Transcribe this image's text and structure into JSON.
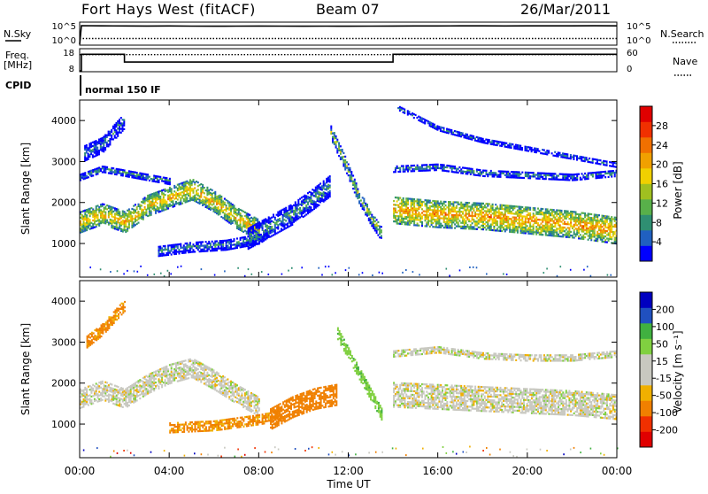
{
  "header": {
    "station": "Fort Hays West (fitACF)",
    "beam": "Beam 07",
    "date": "26/Mar/2011"
  },
  "top_panels": {
    "nsky": {
      "label": "N.Sky",
      "right_label": "N.Search",
      "left_ticks": [
        "10^5",
        "10^0"
      ],
      "right_ticks": [
        "10^5",
        "10^0"
      ]
    },
    "freq": {
      "label_line1": "Freq.",
      "label_line2": "[MHz]",
      "right_label": "Nave",
      "left_ticks": [
        "18",
        "8"
      ],
      "right_ticks": [
        "60",
        "0"
      ]
    },
    "cpid": {
      "label": "CPID",
      "mode": "normal 150 IF"
    }
  },
  "colors": {
    "power_scale": [
      "#0000ff",
      "#2060c0",
      "#2f8f72",
      "#58b04a",
      "#a0c020",
      "#f0d000",
      "#f0a000",
      "#f07000",
      "#f03000",
      "#e00000"
    ],
    "velocity_scale": [
      "#e00000",
      "#f03000",
      "#f08000",
      "#f0b000",
      "#c8c8c0",
      "#c8c8c0",
      "#80d040",
      "#40b040",
      "#2050c0",
      "#0000c0"
    ]
  },
  "chart_data": [
    {
      "type": "line",
      "name": "nsky-nsearch",
      "xlabel": "",
      "ylabel": "N.Sky",
      "y2label": "N.Search",
      "xlim": [
        0,
        24
      ],
      "scale": "log",
      "ylim": [
        1,
        100000
      ],
      "series": [
        {
          "name": "N.Sky",
          "style": "solid",
          "x": [
            0,
            0.08,
            1,
            2,
            3,
            4,
            5,
            6,
            7,
            8,
            9,
            10,
            11,
            12,
            13,
            14,
            15,
            16,
            17,
            18,
            19,
            20,
            21,
            22,
            23,
            24
          ],
          "values": [
            1,
            60000,
            52000,
            50000,
            49000,
            50000,
            46000,
            44000,
            45000,
            47000,
            46000,
            44000,
            45000,
            43000,
            46000,
            48000,
            50000,
            51000,
            53000,
            52000,
            51000,
            53000,
            54000,
            53000,
            55000,
            54000
          ]
        },
        {
          "name": "N.Search",
          "style": "dotted",
          "x": [
            0,
            24
          ],
          "values": [
            30,
            30
          ]
        }
      ]
    },
    {
      "type": "line",
      "name": "freq-nave",
      "ylabel": "Freq. [MHz]",
      "y2label": "Nave",
      "xlim": [
        0,
        24
      ],
      "ylim": [
        8,
        18
      ],
      "y2lim": [
        0,
        60
      ],
      "series": [
        {
          "name": "Freq.",
          "style": "solid",
          "x": [
            0,
            0.08,
            0.08,
            2.0,
            2.0,
            14.0,
            14.0,
            24
          ],
          "values": [
            8,
            8,
            16.5,
            16.5,
            12.5,
            12.5,
            16.5,
            16.5
          ]
        },
        {
          "name": "Nave",
          "style": "dotted",
          "x": [
            0,
            24
          ],
          "values": [
            50,
            50
          ]
        }
      ]
    },
    {
      "type": "heatmap",
      "name": "power",
      "xlabel": "",
      "ylabel": "Slant Range [km]",
      "colorbar_label": "Power [dB]",
      "colorbar_ticks": [
        "4",
        "8",
        "12",
        "16",
        "20",
        "24",
        "28"
      ],
      "xlim": [
        0,
        24
      ],
      "ylim": [
        180,
        4500
      ],
      "yticks": [
        "1000",
        "2000",
        "3000",
        "4000"
      ],
      "bands": [
        {
          "x": [
            0,
            1,
            2,
            3,
            4,
            5,
            6,
            7,
            8
          ],
          "y": [
            1500,
            1700,
            1500,
            1900,
            2100,
            2300,
            2000,
            1600,
            1300
          ],
          "width_km": 500,
          "power_db": 18
        },
        {
          "x": [
            0,
            1,
            2,
            2.5,
            3,
            4
          ],
          "y": [
            2600,
            2800,
            2700,
            2650,
            2600,
            2500
          ],
          "width_km": 150,
          "power_db": 8
        },
        {
          "x": [
            0.2,
            1,
            2
          ],
          "y": [
            3200,
            3400,
            4000
          ],
          "width_km": 400,
          "power_db": 6
        },
        {
          "x": [
            3.5,
            5,
            6.5,
            8,
            8.5
          ],
          "y": [
            800,
            900,
            950,
            1100,
            1300
          ],
          "width_km": 250,
          "power_db": 7
        },
        {
          "x": [
            7.5,
            8.5,
            9.5,
            10.5,
            11.2
          ],
          "y": [
            1100,
            1400,
            1700,
            2100,
            2400
          ],
          "width_km": 500,
          "power_db": 8
        },
        {
          "x": [
            11.2,
            11.8,
            12.4,
            13.0,
            13.5
          ],
          "y": [
            3700,
            3000,
            2200,
            1600,
            1200
          ],
          "width_km": 350,
          "power_db": 12
        },
        {
          "x": [
            14,
            16,
            18,
            20,
            22,
            24
          ],
          "y": [
            1800,
            1700,
            1650,
            1550,
            1450,
            1300
          ],
          "width_km": 650,
          "power_db": 20
        },
        {
          "x": [
            14,
            16,
            18,
            20,
            22,
            24
          ],
          "y": [
            2800,
            2850,
            2700,
            2650,
            2600,
            2700
          ],
          "width_km": 150,
          "power_db": 8
        },
        {
          "x": [
            14.2,
            16,
            18,
            20,
            22,
            24
          ],
          "y": [
            4300,
            3800,
            3500,
            3300,
            3100,
            2900
          ],
          "width_km": 120,
          "power_db": 6
        }
      ]
    },
    {
      "type": "heatmap",
      "name": "velocity",
      "xlabel": "Time UT",
      "ylabel": "Slant Range [km]",
      "colorbar_label": "Velocity [m s⁻¹]",
      "colorbar_ticks": [
        "-200",
        "-100",
        "-50",
        "-15",
        "15",
        "50",
        "100",
        "200"
      ],
      "xlim": [
        0,
        24
      ],
      "xticks": [
        "00:00",
        "04:00",
        "08:00",
        "12:00",
        "16:00",
        "20:00",
        "00:00"
      ],
      "ylim": [
        180,
        4500
      ],
      "yticks": [
        "1000",
        "2000",
        "3000",
        "4000"
      ],
      "bands": [
        {
          "x": [
            0,
            1,
            2,
            3,
            4,
            5,
            6,
            7,
            8
          ],
          "y": [
            1600,
            1800,
            1600,
            1950,
            2200,
            2350,
            2050,
            1700,
            1400
          ],
          "width_km": 450,
          "velocity": 0
        },
        {
          "x": [
            0.3,
            1,
            2
          ],
          "y": [
            3000,
            3300,
            3900
          ],
          "width_km": 300,
          "velocity": -60
        },
        {
          "x": [
            4,
            6,
            8,
            9
          ],
          "y": [
            900,
            950,
            1100,
            1200
          ],
          "width_km": 250,
          "velocity": -60
        },
        {
          "x": [
            8.5,
            9.5,
            10.5,
            11.5
          ],
          "y": [
            1100,
            1400,
            1600,
            1700
          ],
          "width_km": 500,
          "velocity": -80
        },
        {
          "x": [
            11.5,
            12.0,
            12.5,
            13.0,
            13.5
          ],
          "y": [
            3200,
            2700,
            2200,
            1700,
            1200
          ],
          "width_km": 300,
          "velocity": 35
        },
        {
          "x": [
            14,
            16,
            18,
            20,
            22,
            24
          ],
          "y": [
            1700,
            1650,
            1600,
            1550,
            1500,
            1400
          ],
          "width_km": 600,
          "velocity": 0
        },
        {
          "x": [
            14,
            16,
            18,
            20,
            22,
            24
          ],
          "y": [
            2700,
            2800,
            2650,
            2600,
            2600,
            2700
          ],
          "width_km": 150,
          "velocity": 0
        }
      ]
    }
  ]
}
